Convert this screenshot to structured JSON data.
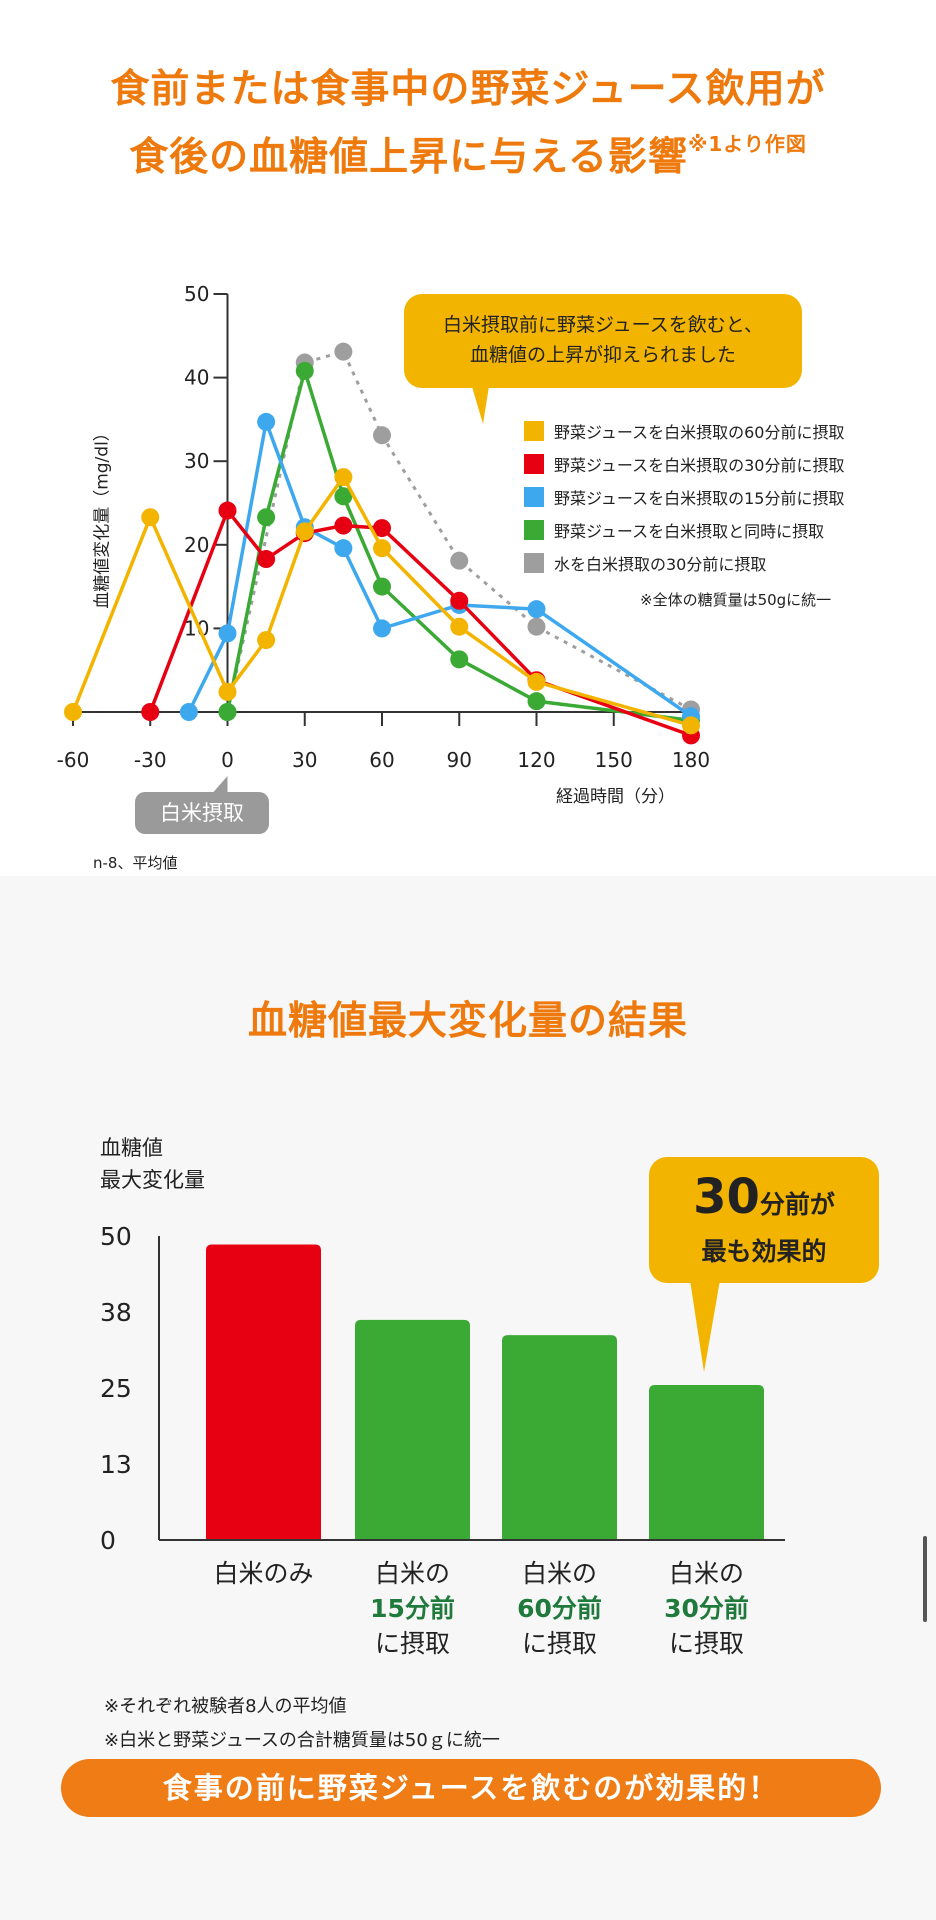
{
  "title": {
    "line1": "食前または食事中の野菜ジュース飲用が",
    "line2": "食後の血糖値上昇に与える影響",
    "source_note": "※1より作図"
  },
  "chart_data": [
    {
      "type": "line",
      "xlabel": "経過時間（分）",
      "ylabel": "血糖値変化量（mg/dl）",
      "x_ticks": [
        -60,
        -30,
        0,
        30,
        60,
        90,
        120,
        150,
        180
      ],
      "y_ticks": [
        10,
        20,
        30,
        40,
        50
      ],
      "xlim": [
        -60,
        180
      ],
      "ylim": [
        0,
        50
      ],
      "callout": "白米摂取前に野菜ジュースを飲むと、\n血糖値の上昇が抑えられました",
      "callout_lines": [
        "白米摂取前に野菜ジュースを飲むと、",
        "血糖値の上昇が抑えられました"
      ],
      "x_marker": "白米摂取",
      "note": "※全体の糖質量は50gに統一",
      "sample_note": "n-8、平均値",
      "legend_position": "right",
      "series": [
        {
          "name": "野菜ジュースを白米摂取の60分前に摂取",
          "color": "#f3b400",
          "dashed": false,
          "x": [
            -60,
            -30,
            0,
            15,
            30,
            45,
            60,
            90,
            120,
            180
          ],
          "y": [
            0,
            23.3,
            2.4,
            8.6,
            21.6,
            28.1,
            19.6,
            10.2,
            3.6,
            -1.6
          ]
        },
        {
          "name": "野菜ジュースを白米摂取の30分前に摂取",
          "color": "#e60012",
          "dashed": false,
          "x": [
            -30,
            0,
            15,
            30,
            45,
            60,
            90,
            120,
            180
          ],
          "y": [
            0,
            24.1,
            18.3,
            21.4,
            22.3,
            22.0,
            13.3,
            3.8,
            -2.8
          ]
        },
        {
          "name": "野菜ジュースを白米摂取の15分前に摂取",
          "color": "#3ea8ef",
          "dashed": false,
          "x": [
            -15,
            0,
            15,
            30,
            45,
            60,
            90,
            120,
            180
          ],
          "y": [
            0,
            9.4,
            34.7,
            22.1,
            19.6,
            10.0,
            12.8,
            12.3,
            -0.5
          ]
        },
        {
          "name": "野菜ジュースを白米摂取と同時に摂取",
          "color": "#3aaa35",
          "dashed": false,
          "x": [
            0,
            15,
            30,
            45,
            60,
            90,
            120,
            180
          ],
          "y": [
            0,
            23.3,
            40.8,
            25.8,
            15.0,
            6.3,
            1.3,
            -1.0
          ]
        },
        {
          "name": "水を白米摂取の30分前に摂取",
          "color": "#9e9e9e",
          "dashed": true,
          "x": [
            0,
            30,
            45,
            60,
            90,
            120,
            180
          ],
          "y": [
            0,
            41.8,
            43.1,
            33.1,
            18.1,
            10.2,
            0.3
          ]
        }
      ]
    },
    {
      "type": "bar",
      "title": "血糖値最大変化量の結果",
      "ylabel_lines": [
        "血糖値",
        "最大変化量"
      ],
      "y_ticks": [
        "50",
        "38",
        "25",
        "13",
        "0"
      ],
      "y_tick_values": [
        50,
        37.5,
        25,
        12.5,
        0
      ],
      "ylim": [
        0,
        50
      ],
      "categories": [
        {
          "line1": "白米のみ",
          "line2": "",
          "line3": ""
        },
        {
          "line1": "白米の",
          "line2": "15分前",
          "line3": "に摂取"
        },
        {
          "line1": "白米の",
          "line2": "60分前",
          "line3": "に摂取"
        },
        {
          "line1": "白米の",
          "line2": "30分前",
          "line3": "に摂取"
        }
      ],
      "values": [
        48.6,
        36.2,
        33.7,
        25.5
      ],
      "colors": [
        "#e60012",
        "#3aaa35",
        "#3aaa35",
        "#3aaa35"
      ],
      "callout": {
        "big": "30",
        "rest": "分前が",
        "line2": "最も効果的"
      },
      "notes": [
        "※それぞれ被験者8人の平均値",
        "※白米と野菜ジュースの合計糖質量は50ｇに統一"
      ]
    }
  ],
  "banner": "食事の前に野菜ジュースを飲むのが効果的！"
}
